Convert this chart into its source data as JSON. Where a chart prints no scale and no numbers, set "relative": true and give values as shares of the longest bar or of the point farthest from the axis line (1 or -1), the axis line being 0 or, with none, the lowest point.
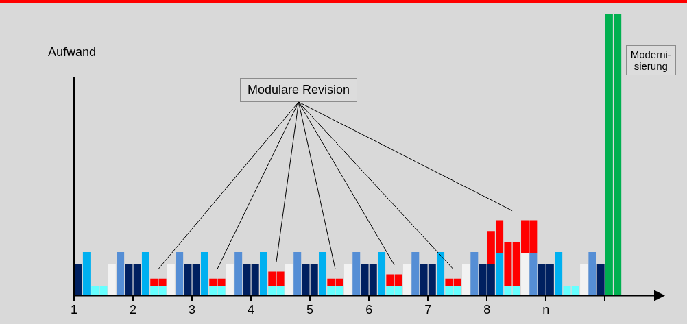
{
  "chart_data": {
    "type": "bar",
    "relative": true,
    "stacked": true,
    "legend": false,
    "ylabel": "Aufwand",
    "annotations": [
      "Modulare Revision",
      "Moderni-\nsierung"
    ],
    "x": [
      1.071,
      1.214,
      1.357,
      1.5,
      1.643,
      1.786,
      1.929,
      2.071,
      2.214,
      2.357,
      2.5,
      2.643,
      2.786,
      2.929,
      3.071,
      3.214,
      3.357,
      3.5,
      3.643,
      3.786,
      3.929,
      4.071,
      4.214,
      4.357,
      4.5,
      4.643,
      4.786,
      4.929,
      5.071,
      5.214,
      5.357,
      5.5,
      5.643,
      5.786,
      5.929,
      6.071,
      6.214,
      6.357,
      6.5,
      6.643,
      6.786,
      6.929,
      7.071,
      7.214,
      7.357,
      7.5,
      7.643,
      7.786,
      7.929,
      8.071,
      8.214,
      8.357,
      8.5,
      8.643,
      8.786,
      8.929,
      9.071,
      9.214,
      9.357,
      9.5,
      9.643,
      9.786,
      9.929,
      10.071,
      10.214
    ],
    "xlim": [
      1,
      10.857
    ],
    "xticks": [
      1,
      2,
      3,
      4,
      5,
      6,
      7,
      8,
      {
        "value": 9,
        "label": "n"
      },
      {
        "value": 10,
        "label": null
      }
    ],
    "series": [
      {
        "colors": [
          "#002060",
          "#00b0f0",
          "#66ffff",
          "#66ffff",
          "#f2f2f2",
          "#558ed5",
          "#002060",
          "#002060",
          "#00b0f0",
          "#66ffff",
          "#66ffff",
          "#f2f2f2",
          "#558ed5",
          "#002060",
          "#002060",
          "#00b0f0",
          "#66ffff",
          "#66ffff",
          "#f2f2f2",
          "#558ed5",
          "#002060",
          "#002060",
          "#00b0f0",
          "#66ffff",
          "#66ffff",
          "#f2f2f2",
          "#558ed5",
          "#002060",
          "#002060",
          "#00b0f0",
          "#66ffff",
          "#66ffff",
          "#f2f2f2",
          "#558ed5",
          "#002060",
          "#002060",
          "#00b0f0",
          "#66ffff",
          "#66ffff",
          "#f2f2f2",
          "#558ed5",
          "#002060",
          "#002060",
          "#00b0f0",
          "#66ffff",
          "#66ffff",
          "#f2f2f2",
          "#558ed5",
          "#002060",
          "#002060",
          "#00b0f0",
          "#66ffff",
          "#66ffff",
          "#f2f2f2",
          "#558ed5",
          "#002060",
          "#002060",
          "#00b0f0",
          "#66ffff",
          "#66ffff",
          "#f2f2f2",
          "#558ed5",
          "#002060",
          "#00b050",
          "#00b050"
        ],
        "values": [
          0.113,
          0.154,
          0.035,
          0.035,
          0.113,
          0.154,
          0.113,
          0.113,
          0.154,
          0.035,
          0.035,
          0.113,
          0.154,
          0.113,
          0.113,
          0.154,
          0.035,
          0.035,
          0.113,
          0.154,
          0.113,
          0.113,
          0.154,
          0.035,
          0.035,
          0.113,
          0.154,
          0.113,
          0.113,
          0.154,
          0.035,
          0.035,
          0.113,
          0.154,
          0.113,
          0.113,
          0.154,
          0.035,
          0.035,
          0.113,
          0.154,
          0.113,
          0.113,
          0.154,
          0.035,
          0.035,
          0.113,
          0.154,
          0.113,
          0.113,
          0.149,
          0.035,
          0.035,
          0.149,
          0.149,
          0.113,
          0.113,
          0.154,
          0.035,
          0.035,
          0.113,
          0.154,
          0.113,
          1,
          1
        ]
      },
      {
        "color": "#ff0000",
        "values": [
          null,
          null,
          null,
          null,
          null,
          null,
          null,
          null,
          null,
          0.025,
          0.025,
          null,
          null,
          null,
          null,
          null,
          0.025,
          0.025,
          null,
          null,
          null,
          null,
          null,
          0.05,
          0.05,
          null,
          null,
          null,
          null,
          null,
          0.025,
          0.025,
          null,
          null,
          null,
          null,
          null,
          0.04,
          0.04,
          null,
          null,
          null,
          null,
          null,
          0.025,
          0.025,
          null,
          null,
          null,
          0.116,
          0.118,
          0.154,
          0.154,
          0.118,
          0.118,
          null,
          null,
          null,
          null,
          null,
          null,
          null,
          null,
          null,
          null
        ]
      }
    ]
  }
}
